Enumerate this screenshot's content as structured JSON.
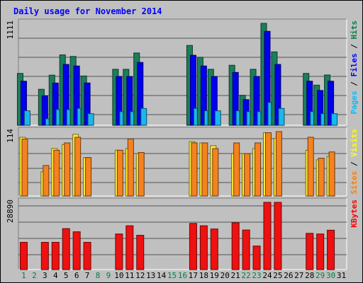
{
  "chart_data": {
    "type": "bar",
    "title": "Daily usage for November 2014",
    "days": [
      "1",
      "2",
      "3",
      "4",
      "5",
      "6",
      "7",
      "8",
      "9",
      "10",
      "11",
      "12",
      "13",
      "14",
      "15",
      "16",
      "17",
      "18",
      "19",
      "20",
      "21",
      "22",
      "23",
      "24",
      "25",
      "26",
      "27",
      "28",
      "29",
      "30",
      "31"
    ],
    "weekend_days": [
      "1",
      "2",
      "8",
      "9",
      "15",
      "16",
      "22",
      "23",
      "29",
      "30"
    ],
    "panels": [
      {
        "id": "hits",
        "max_label": "1111",
        "max": 1111,
        "legend": [
          {
            "label": "Pages",
            "color": "#00bfff"
          },
          {
            "label": "Files",
            "color": "#0000ff"
          },
          {
            "label": "Hits",
            "color": "#008040"
          }
        ],
        "series": [
          {
            "name": "Hits",
            "color": "#1a7f5a",
            "values": [
              565,
              0,
              392,
              546,
              767,
              750,
              537,
              0,
              0,
              610,
              610,
              788,
              0,
              0,
              0,
              0,
              870,
              741,
              610,
              0,
              654,
              327,
              610,
              1111,
              800,
              0,
              0,
              565,
              437,
              548,
              0
            ]
          },
          {
            "name": "Files",
            "color": "#0000ee",
            "values": [
              480,
              0,
              320,
              460,
              663,
              646,
              461,
              0,
              0,
              531,
              531,
              685,
              0,
              0,
              0,
              0,
              763,
              646,
              531,
              0,
              576,
              279,
              531,
              1024,
              663,
              0,
              0,
              480,
              379,
              480,
              0
            ]
          },
          {
            "name": "Pages",
            "color": "#1ab7ee",
            "values": [
              157,
              0,
              70,
              170,
              170,
              183,
              126,
              0,
              0,
              148,
              148,
              183,
              0,
              0,
              0,
              0,
              183,
              157,
              157,
              0,
              157,
              148,
              148,
              248,
              183,
              0,
              0,
              148,
              126,
              126,
              0
            ]
          }
        ]
      },
      {
        "id": "sites",
        "max_label": "114",
        "max": 114,
        "legend": [
          {
            "label": "Sites",
            "color": "#ff8000"
          },
          {
            "label": "Visits",
            "color": "#ffff00"
          }
        ],
        "series": [
          {
            "name": "Visits",
            "color": "#ffee33",
            "values": [
              104,
              0,
              43,
              84,
              91,
              109,
              68,
              0,
              0,
              81,
              84,
              75,
              0,
              0,
              0,
              0,
              96,
              94,
              89,
              0,
              75,
              75,
              84,
              112,
              102,
              0,
              0,
              81,
              64,
              70,
              0
            ]
          },
          {
            "name": "Sites",
            "color": "#f58220",
            "values": [
              101,
              0,
              54,
              81,
              94,
              104,
              68,
              0,
              0,
              81,
              101,
              77,
              0,
              0,
              0,
              0,
              94,
              94,
              84,
              0,
              94,
              75,
              94,
              112,
              114,
              0,
              0,
              104,
              67,
              78,
              0
            ]
          }
        ]
      },
      {
        "id": "kbytes",
        "max_label": "28890",
        "max": 28890,
        "legend": [
          {
            "label": "KBytes",
            "color": "#ff0000"
          }
        ],
        "series": [
          {
            "name": "KBytes",
            "color": "#ee1111",
            "values": [
              11710,
              0,
              11710,
              11710,
              17600,
              16240,
              11710,
              0,
              0,
              15290,
              18830,
              14740,
              0,
              0,
              0,
              0,
              19840,
              18830,
              17450,
              0,
              20100,
              17000,
              10120,
              28890,
              28890,
              0,
              0,
              15570,
              15300,
              16930,
              0
            ]
          }
        ]
      }
    ]
  }
}
